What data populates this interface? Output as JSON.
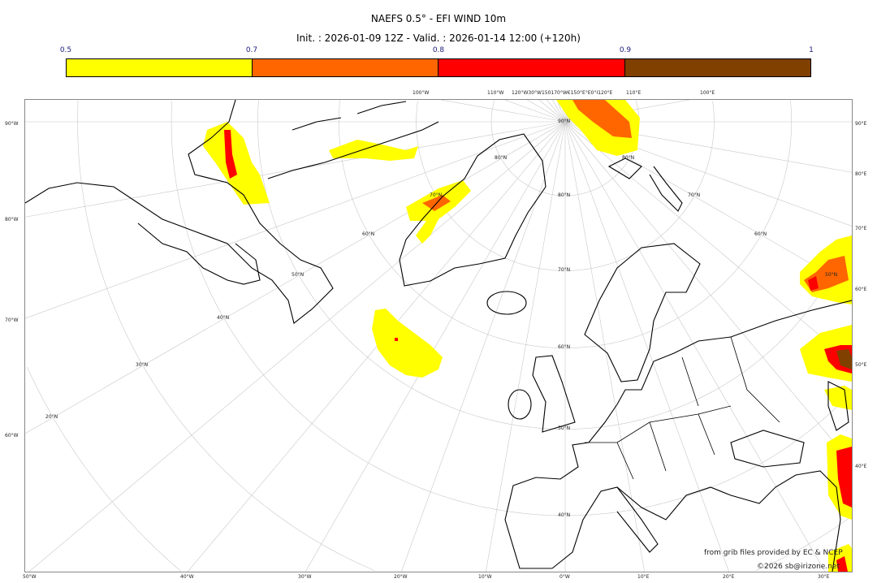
{
  "title": "NAEFS 0.5° - EFI WIND 10m",
  "subtitle": "Init. : 2026-01-09 12Z - Valid. : 2026-01-14 12:00 (+120h)",
  "colorbar": {
    "ticks": [
      "0.5",
      "0.7",
      "0.8",
      "0.9",
      "1"
    ],
    "bins": [
      {
        "from": 0.5,
        "to": 0.7,
        "color": "#ffff00"
      },
      {
        "from": 0.7,
        "to": 0.8,
        "color": "#ff6600"
      },
      {
        "from": 0.8,
        "to": 0.9,
        "color": "#ff0000"
      },
      {
        "from": 0.9,
        "to": 1.0,
        "color": "#804000"
      }
    ]
  },
  "map": {
    "projection": "polar stereographic",
    "top_labels": [
      "100°W",
      "110°W",
      "120°W30°W150170°W€150°E°E0°I120°E",
      "110°E",
      "100°E"
    ],
    "left_labels": [
      "90°W",
      "80°W",
      "70°W",
      "60°W"
    ],
    "right_labels": [
      "90°E",
      "80°E",
      "70°E",
      "60°E",
      "50°E",
      "40°E"
    ],
    "bottom_labels": [
      "50°W",
      "40°W",
      "30°W",
      "20°W",
      "10°W",
      "0°W",
      "10°E",
      "20°E",
      "30°E"
    ],
    "lat_labels": [
      "90°N",
      "80°N",
      "80°N",
      "80°N",
      "70°N",
      "70°N",
      "70°N",
      "60°N",
      "60°N",
      "60°N",
      "50°N",
      "50°N",
      "50°N",
      "40°N",
      "40°N",
      "30°N",
      "20°N"
    ]
  },
  "footer": {
    "source": "from grib files provided by EC & NCEP",
    "copyright": "©2026 sb@irizone.net"
  }
}
